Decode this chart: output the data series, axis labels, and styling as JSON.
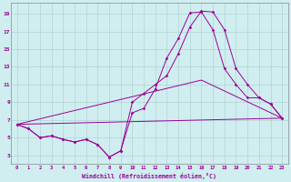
{
  "xlabel": "Windchill (Refroidissement éolien,°C)",
  "bg_color": "#d0eef0",
  "line_color": "#990099",
  "grid_color": "#aacccc",
  "xlim": [
    -0.5,
    23.5
  ],
  "ylim": [
    2.0,
    20.2
  ],
  "xticks": [
    0,
    1,
    2,
    3,
    4,
    5,
    6,
    7,
    8,
    9,
    10,
    11,
    12,
    13,
    14,
    15,
    16,
    17,
    18,
    19,
    20,
    21,
    22,
    23
  ],
  "yticks": [
    3,
    5,
    7,
    9,
    11,
    13,
    15,
    17,
    19
  ],
  "line1_x": [
    0,
    1,
    2,
    3,
    4,
    5,
    6,
    7,
    8,
    9,
    10,
    11,
    12,
    13,
    14,
    15,
    16,
    17,
    18,
    19,
    20,
    21,
    22,
    23
  ],
  "line1_y": [
    6.5,
    6.0,
    5.0,
    5.2,
    4.8,
    4.5,
    4.8,
    4.2,
    2.8,
    3.5,
    7.8,
    8.3,
    10.5,
    14.0,
    16.2,
    19.1,
    19.2,
    17.2,
    12.8,
    11.0,
    9.5,
    9.5,
    8.8,
    7.2
  ],
  "line2_x": [
    0,
    1,
    2,
    3,
    4,
    5,
    6,
    7,
    8,
    9,
    10,
    11,
    12,
    13,
    14,
    15,
    16,
    17,
    18,
    19,
    20,
    21,
    22,
    23
  ],
  "line2_y": [
    6.5,
    6.0,
    5.0,
    5.2,
    4.8,
    4.5,
    4.8,
    4.2,
    2.8,
    3.5,
    9.0,
    10.0,
    11.0,
    12.0,
    14.5,
    17.5,
    19.3,
    19.2,
    17.2,
    12.8,
    11.0,
    9.5,
    8.8,
    7.2
  ],
  "line3_x": [
    0,
    23
  ],
  "line3_y": [
    6.5,
    7.2
  ],
  "line4_x": [
    0,
    16,
    23
  ],
  "line4_y": [
    6.5,
    11.5,
    7.2
  ]
}
